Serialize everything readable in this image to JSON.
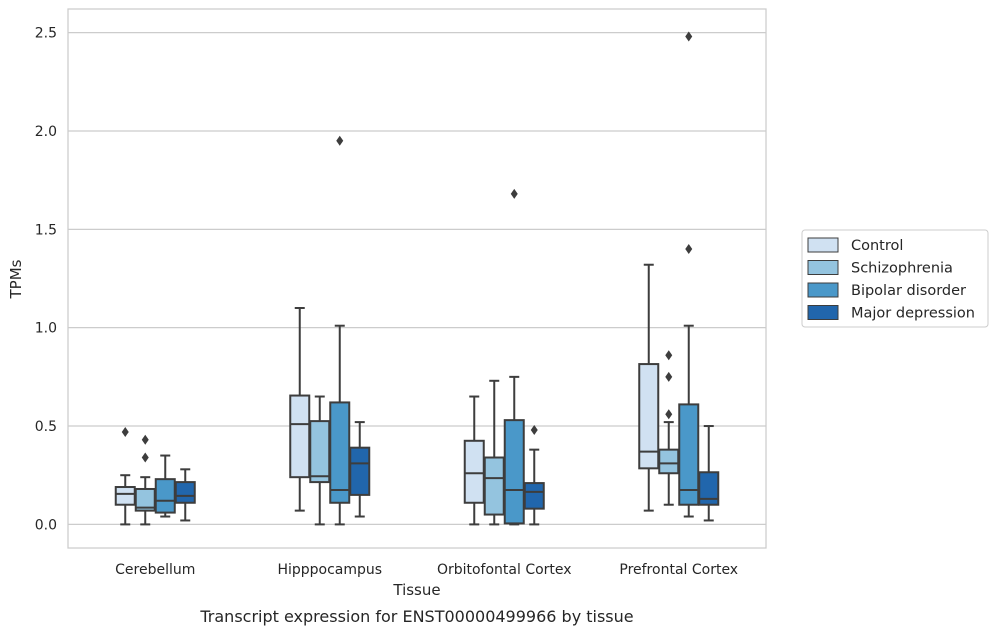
{
  "chart_data": {
    "type": "box",
    "xlabel": "Tissue",
    "ylabel": "TPMs",
    "caption": "Transcript expression for ENST00000499966 by tissue",
    "ylim": [
      -0.12,
      2.62
    ],
    "yticks": [
      "0.0",
      "0.5",
      "1.0",
      "1.5",
      "2.0",
      "2.5"
    ],
    "categories": [
      "Cerebellum",
      "Hipppocampus",
      "Orbitofontal Cortex",
      "Prefrontal Cortex"
    ],
    "grid": "horizontal",
    "legend_position": "right",
    "series": [
      {
        "name": "Control",
        "color": "#d0e1f2",
        "boxes": [
          {
            "whislo": 0.0,
            "q1": 0.1,
            "med": 0.155,
            "q3": 0.19,
            "whishi": 0.25,
            "fliers": [
              0.47
            ]
          },
          {
            "whislo": 0.07,
            "q1": 0.24,
            "med": 0.51,
            "q3": 0.655,
            "whishi": 1.1,
            "fliers": []
          },
          {
            "whislo": 0.0,
            "q1": 0.11,
            "med": 0.26,
            "q3": 0.425,
            "whishi": 0.65,
            "fliers": []
          },
          {
            "whislo": 0.07,
            "q1": 0.285,
            "med": 0.37,
            "q3": 0.815,
            "whishi": 1.32,
            "fliers": []
          }
        ]
      },
      {
        "name": "Schizophrenia",
        "color": "#94c4df",
        "boxes": [
          {
            "whislo": 0.0,
            "q1": 0.07,
            "med": 0.085,
            "q3": 0.18,
            "whishi": 0.24,
            "fliers": [
              0.34,
              0.43
            ]
          },
          {
            "whislo": 0.0,
            "q1": 0.215,
            "med": 0.245,
            "q3": 0.525,
            "whishi": 0.65,
            "fliers": []
          },
          {
            "whislo": 0.0,
            "q1": 0.05,
            "med": 0.235,
            "q3": 0.34,
            "whishi": 0.73,
            "fliers": []
          },
          {
            "whislo": 0.1,
            "q1": 0.26,
            "med": 0.31,
            "q3": 0.38,
            "whishi": 0.52,
            "fliers": [
              0.56,
              0.75,
              0.86
            ]
          }
        ]
      },
      {
        "name": "Bipolar disorder",
        "color": "#4a98c9",
        "boxes": [
          {
            "whislo": 0.04,
            "q1": 0.06,
            "med": 0.12,
            "q3": 0.23,
            "whishi": 0.35,
            "fliers": []
          },
          {
            "whislo": 0.0,
            "q1": 0.11,
            "med": 0.175,
            "q3": 0.62,
            "whishi": 1.01,
            "fliers": [
              1.95
            ]
          },
          {
            "whislo": 0.0,
            "q1": 0.005,
            "med": 0.175,
            "q3": 0.53,
            "whishi": 0.75,
            "fliers": [
              1.68
            ]
          },
          {
            "whislo": 0.04,
            "q1": 0.1,
            "med": 0.175,
            "q3": 0.61,
            "whishi": 1.01,
            "fliers": [
              1.4,
              2.48
            ]
          }
        ]
      },
      {
        "name": "Major depression",
        "color": "#2166ac",
        "boxes": [
          {
            "whislo": 0.02,
            "q1": 0.11,
            "med": 0.145,
            "q3": 0.215,
            "whishi": 0.28,
            "fliers": []
          },
          {
            "whislo": 0.04,
            "q1": 0.15,
            "med": 0.31,
            "q3": 0.39,
            "whishi": 0.52,
            "fliers": []
          },
          {
            "whislo": 0.0,
            "q1": 0.08,
            "med": 0.165,
            "q3": 0.21,
            "whishi": 0.38,
            "fliers": [
              0.48
            ]
          },
          {
            "whislo": 0.02,
            "q1": 0.1,
            "med": 0.13,
            "q3": 0.265,
            "whishi": 0.5,
            "fliers": []
          }
        ]
      }
    ]
  }
}
